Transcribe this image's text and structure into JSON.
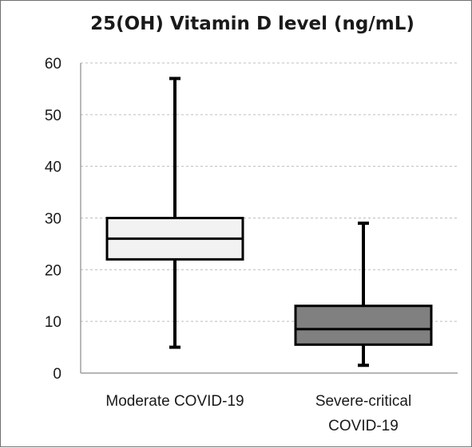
{
  "chart_data": {
    "type": "boxplot",
    "title": "25(OH) Vitamin D level (ng/mL)",
    "xlabel": "",
    "ylabel": "",
    "ylim": [
      0,
      60
    ],
    "yticks": [
      0,
      10,
      20,
      30,
      40,
      50,
      60
    ],
    "grid": true,
    "legend": "none",
    "categories": [
      [
        "Moderate COVID-19"
      ],
      [
        "Severe-critical",
        "COVID-19"
      ]
    ],
    "series": [
      {
        "category": "Moderate COVID-19",
        "min": 5,
        "q1": 22,
        "median": 26,
        "q3": 30,
        "max": 57,
        "color": "#f2f2f2"
      },
      {
        "category": "Severe-critical COVID-19",
        "min": 1.5,
        "q1": 5.5,
        "median": 8.5,
        "q3": 13,
        "max": 29,
        "color": "#808080"
      }
    ]
  }
}
